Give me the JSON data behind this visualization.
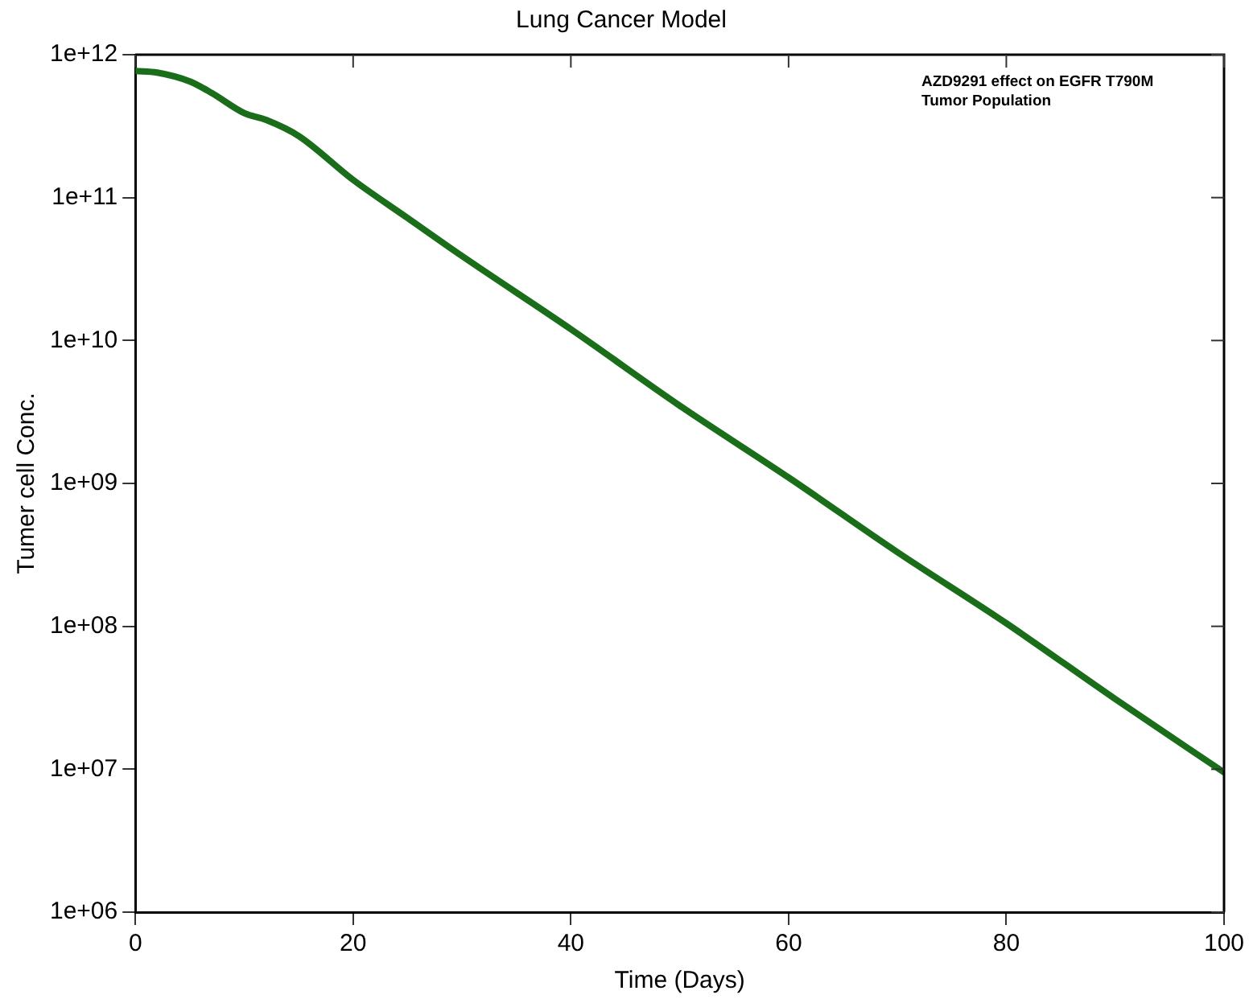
{
  "chart_data": {
    "type": "line",
    "title": "Lung Cancer Model",
    "xlabel": "Time (Days)",
    "ylabel": "Tumer cell Conc.",
    "log": "y",
    "grid": false,
    "legend": false,
    "marker": "none",
    "line_style": "solid",
    "annotations": [
      "AZD9291 effect on EGFR T790M Tumor Population"
    ],
    "xlim": [
      0,
      100
    ],
    "xticks": [
      0,
      20,
      40,
      60,
      80,
      100
    ],
    "ylim": [
      1000000,
      1000000000000
    ],
    "yticks": [
      {
        "value": 1000000,
        "label": "1e+06"
      },
      {
        "value": 10000000,
        "label": "1e+07"
      },
      {
        "value": 100000000,
        "label": "1e+08"
      },
      {
        "value": 1000000000,
        "label": "1e+09"
      },
      {
        "value": 10000000000,
        "label": "1e+10"
      },
      {
        "value": 100000000000,
        "label": "1e+11"
      },
      {
        "value": 1000000000000,
        "label": "1e+12"
      }
    ],
    "series": [
      {
        "color": "#1a6e1a",
        "x": [
          0,
          2,
          5,
          7,
          10,
          12,
          15,
          20,
          25,
          30,
          40,
          50,
          60,
          70,
          80,
          90,
          100
        ],
        "values": [
          770000000000,
          750000000000,
          650000000000,
          540000000000,
          390000000000,
          350000000000,
          270000000000,
          133000000000,
          72000000000,
          39000000000,
          12000000000,
          3500000000,
          1100000000,
          330000000,
          105000000,
          31000000,
          9500000
        ]
      }
    ]
  }
}
